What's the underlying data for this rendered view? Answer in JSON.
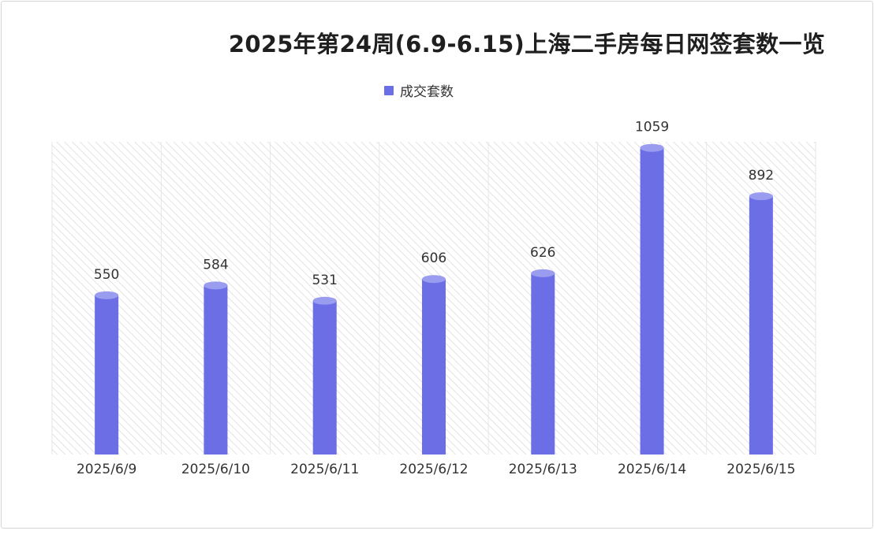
{
  "chart_data": {
    "type": "bar",
    "title": "2025年第24周(6.9-6.15)上海二手房每日网签套数一览",
    "categories": [
      "2025/6/9",
      "2025/6/10",
      "2025/6/11",
      "2025/6/12",
      "2025/6/13",
      "2025/6/14",
      "2025/6/15"
    ],
    "series": [
      {
        "name": "成交套数",
        "values": [
          550,
          584,
          531,
          606,
          626,
          1059,
          892
        ]
      }
    ],
    "legend": "top-center",
    "grid": true,
    "colors": {
      "bar": "#6b6ee4",
      "bar_cap": "#9a9cf0"
    }
  }
}
